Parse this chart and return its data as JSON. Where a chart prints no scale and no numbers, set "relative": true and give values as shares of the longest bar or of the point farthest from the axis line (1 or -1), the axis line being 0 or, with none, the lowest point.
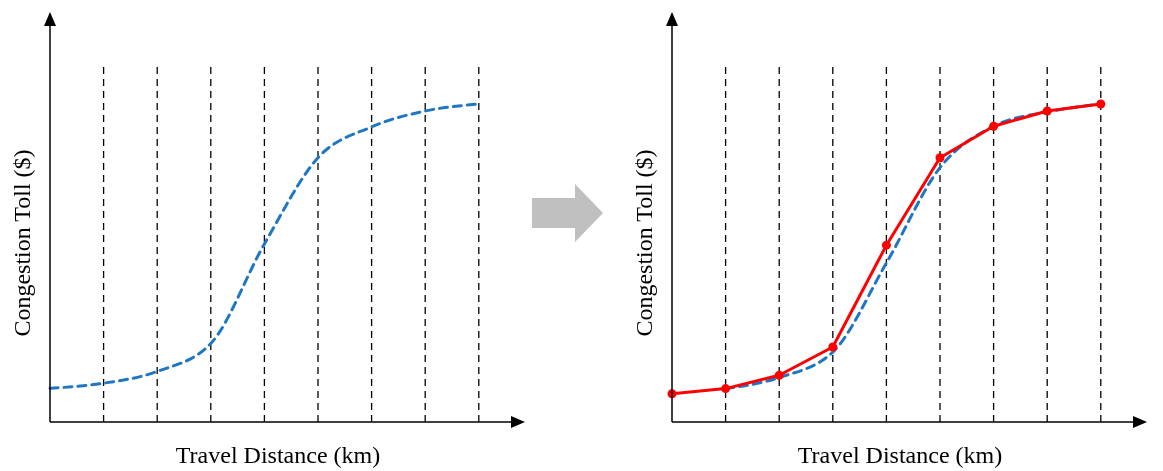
{
  "chart_data": [
    {
      "type": "line",
      "relative": true,
      "xlabel": "Travel Distance (km)",
      "ylabel": "Congestion Toll ($)",
      "categories": [
        null,
        null,
        null,
        null,
        null,
        null,
        null,
        null,
        null
      ],
      "grid": "x",
      "series": [
        {
          "color": "#1f77c4",
          "line_style": "dashed",
          "marker": "none",
          "values": [
            0.106,
            0.122,
            0.159,
            0.247,
            0.56,
            0.831,
            0.928,
            0.978,
            1.0
          ]
        }
      ]
    },
    {
      "type": "line",
      "relative": true,
      "xlabel": "Travel Distance (km)",
      "ylabel": "Congestion Toll ($)",
      "categories": [
        null,
        null,
        null,
        null,
        null,
        null,
        null,
        null,
        null
      ],
      "grid": "x",
      "series": [
        {
          "color": "#1f77c4",
          "line_style": "dashed",
          "marker": "none",
          "values": [
            null,
            0.105,
            0.14,
            0.22,
            0.5,
            0.8,
            0.93,
            0.975,
            1.0
          ]
        },
        {
          "color": "#ff0000",
          "line_style": "solid",
          "marker": "circle",
          "values": [
            0.089,
            0.105,
            0.147,
            0.236,
            0.556,
            0.831,
            0.93,
            0.978,
            1.0
          ]
        }
      ]
    }
  ]
}
